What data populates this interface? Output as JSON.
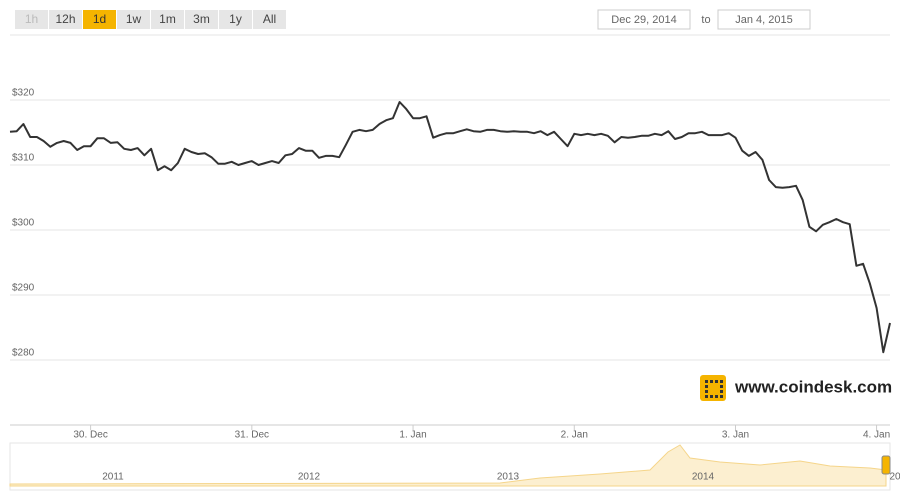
{
  "ui": {
    "range_buttons": [
      "1h",
      "12h",
      "1d",
      "1w",
      "1m",
      "3m",
      "1y",
      "All"
    ],
    "selected_range": "1d",
    "disabled_range": "1h",
    "date_from": "Dec 29, 2014",
    "date_to_word": "to",
    "date_to": "Jan 4, 2015",
    "brand": "www.coindesk.com",
    "navigator_labels": [
      "2011",
      "2012",
      "2013",
      "2014",
      "20"
    ]
  },
  "chart_data": {
    "type": "line",
    "color": "#333333",
    "values": [
      315.1,
      315.2,
      316.3,
      314.3,
      314.3,
      313.7,
      312.8,
      313.4,
      313.7,
      313.4,
      312.3,
      312.9,
      312.9,
      314.1,
      314.1,
      313.4,
      313.5,
      312.5,
      312.3,
      312.6,
      311.5,
      312.5,
      309.2,
      309.8,
      309.2,
      310.3,
      312.5,
      312.0,
      311.7,
      311.8,
      311.2,
      310.2,
      310.2,
      310.5,
      310.0,
      310.3,
      310.6,
      310.0,
      310.3,
      310.6,
      310.3,
      311.5,
      311.7,
      312.6,
      312.2,
      312.2,
      311.1,
      311.4,
      311.4,
      311.2,
      313.1,
      315.1,
      315.4,
      315.2,
      315.4,
      316.3,
      316.9,
      317.2,
      319.7,
      318.6,
      317.2,
      317.2,
      317.5,
      314.2,
      314.6,
      314.9,
      314.9,
      315.2,
      315.5,
      315.2,
      315.1,
      315.4,
      315.4,
      315.2,
      315.1,
      315.2,
      315.1,
      315.1,
      314.9,
      315.2,
      314.6,
      315.1,
      314.0,
      312.9,
      314.8,
      314.6,
      314.8,
      314.6,
      314.8,
      314.5,
      313.5,
      314.3,
      314.2,
      314.3,
      314.5,
      314.5,
      314.8,
      314.6,
      315.2,
      314.0,
      314.3,
      314.9,
      314.9,
      315.1,
      314.6,
      314.6,
      314.6,
      314.9,
      314.2,
      312.2,
      311.4,
      312.0,
      310.8,
      307.7,
      306.6,
      306.5,
      306.6,
      306.8,
      304.6,
      300.5,
      299.8,
      300.8,
      301.2,
      301.7,
      301.2,
      300.9,
      294.5,
      294.8,
      291.8,
      288.0,
      281.2,
      285.7
    ],
    "xlim": [
      0,
      131
    ],
    "xticks": [
      {
        "value": 12,
        "label": "30. Dec"
      },
      {
        "value": 36,
        "label": "31. Dec"
      },
      {
        "value": 60,
        "label": "1. Jan"
      },
      {
        "value": 84,
        "label": "2. Jan"
      },
      {
        "value": 108,
        "label": "3. Jan"
      },
      {
        "value": 129,
        "label": "4. Jan"
      }
    ],
    "ylim": [
      270,
      330
    ],
    "yticks": [
      {
        "value": 280,
        "label": "$280"
      },
      {
        "value": 290,
        "label": "$290"
      },
      {
        "value": 300,
        "label": "$300"
      },
      {
        "value": 310,
        "label": "$310"
      },
      {
        "value": 320,
        "label": "$320"
      }
    ],
    "grid": true
  }
}
